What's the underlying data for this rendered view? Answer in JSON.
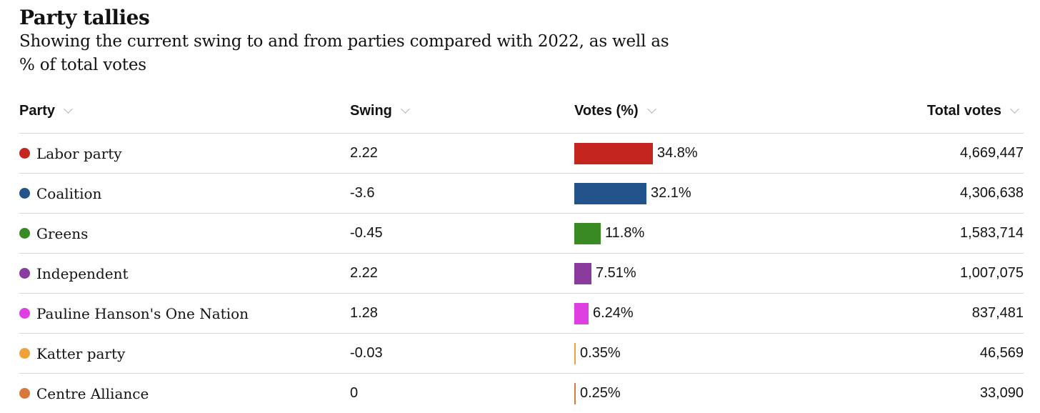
{
  "title": "Party tallies",
  "subtitle": "Showing the current swing to and from parties compared with 2022, as well as % of total votes",
  "columns": {
    "party": "Party",
    "swing": "Swing",
    "votes": "Votes (%)",
    "total": "Total votes"
  },
  "rows": [
    {
      "party": "Labor party",
      "color": "#c4261f",
      "swing": "2.22",
      "votes_pct": 34.8,
      "votes_label": "34.8%",
      "total": "4,669,447"
    },
    {
      "party": "Coalition",
      "color": "#22538a",
      "swing": "-3.6",
      "votes_pct": 32.1,
      "votes_label": "32.1%",
      "total": "4,306,638"
    },
    {
      "party": "Greens",
      "color": "#3a8a24",
      "swing": "-0.45",
      "votes_pct": 11.8,
      "votes_label": "11.8%",
      "total": "1,583,714"
    },
    {
      "party": "Independent",
      "color": "#8b3aa0",
      "swing": "2.22",
      "votes_pct": 7.51,
      "votes_label": "7.51%",
      "total": "1,007,075"
    },
    {
      "party": "Pauline Hanson's One Nation",
      "color": "#df3ee0",
      "swing": "1.28",
      "votes_pct": 6.24,
      "votes_label": "6.24%",
      "total": "837,481"
    },
    {
      "party": "Katter party",
      "color": "#f0a23a",
      "swing": "-0.03",
      "votes_pct": 0.35,
      "votes_label": "0.35%",
      "total": "46,569"
    },
    {
      "party": "Centre Alliance",
      "color": "#d8783a",
      "swing": "0",
      "votes_pct": 0.25,
      "votes_label": "0.25%",
      "total": "33,090"
    }
  ]
}
